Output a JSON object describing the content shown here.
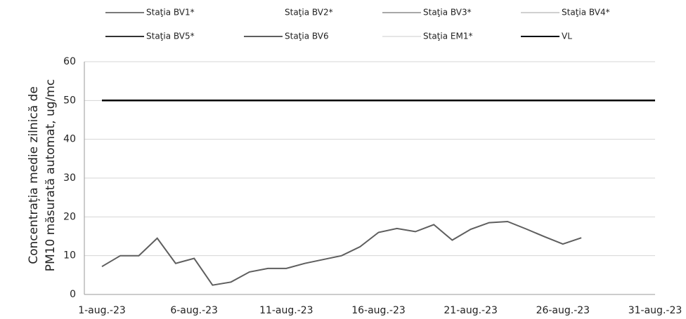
{
  "chart_data": {
    "type": "line",
    "y_label": [
      "Concentrația medie zilnică de",
      "PM10 măsurată automat, ug/mc"
    ],
    "categories": [
      "1-aug.-23",
      null,
      null,
      null,
      null,
      "6-aug.-23",
      null,
      null,
      null,
      null,
      "11-aug.-23",
      null,
      null,
      null,
      null,
      "16-aug.-23",
      null,
      null,
      null,
      null,
      "21-aug.-23",
      null,
      null,
      null,
      null,
      "26-aug.-23",
      null,
      null,
      null,
      null,
      "31-aug.-23"
    ],
    "series": [
      {
        "name": "Staţia BV1*",
        "color": "#7a7a7a",
        "values": [
          null,
          null,
          null,
          null,
          null,
          null,
          null,
          null,
          null,
          null,
          null,
          null,
          null,
          null,
          null,
          null,
          null,
          null,
          null,
          null,
          null,
          null,
          null,
          null,
          null,
          null,
          null,
          null,
          null,
          null,
          null
        ]
      },
      {
        "name": "Staţia BV2*",
        "color": "#ffffff",
        "values": [
          null,
          null,
          null,
          null,
          null,
          null,
          null,
          null,
          null,
          null,
          null,
          null,
          null,
          null,
          null,
          null,
          null,
          null,
          null,
          null,
          null,
          null,
          null,
          null,
          null,
          null,
          null,
          null,
          null,
          null,
          null
        ]
      },
      {
        "name": "Staţia BV3*",
        "color": "#a8a8a8",
        "values": [
          null,
          null,
          null,
          null,
          null,
          null,
          null,
          null,
          null,
          null,
          null,
          null,
          null,
          null,
          null,
          null,
          null,
          null,
          null,
          null,
          null,
          null,
          null,
          null,
          null,
          null,
          null,
          null,
          null,
          null,
          null
        ]
      },
      {
        "name": "Staţia BV4*",
        "color": "#d0d0d0",
        "values": [
          null,
          null,
          null,
          null,
          null,
          null,
          null,
          null,
          null,
          null,
          null,
          null,
          null,
          null,
          null,
          null,
          null,
          null,
          null,
          null,
          null,
          null,
          null,
          null,
          null,
          null,
          null,
          null,
          null,
          null,
          null
        ]
      },
      {
        "name": "Staţia BV5*",
        "color": "#333333",
        "values": [
          null,
          null,
          null,
          null,
          null,
          null,
          null,
          null,
          null,
          null,
          null,
          null,
          null,
          null,
          null,
          null,
          null,
          null,
          null,
          null,
          null,
          null,
          null,
          null,
          null,
          null,
          null,
          null,
          null,
          null,
          null
        ]
      },
      {
        "name": "Staţia BV6",
        "color": "#5e5e5e",
        "values": [
          7.2,
          10,
          10,
          14.5,
          8,
          9.3,
          2.4,
          3.2,
          5.8,
          6.7,
          6.7,
          8,
          9,
          10,
          12.3,
          16,
          17,
          16.2,
          18,
          14,
          16.8,
          18.5,
          18.8,
          16.9,
          14.9,
          13,
          14.6,
          null,
          null,
          null,
          null
        ]
      },
      {
        "name": "Staţia EM1*",
        "color": "#e6e6e6",
        "values": [
          null,
          null,
          null,
          null,
          null,
          null,
          null,
          null,
          null,
          null,
          null,
          null,
          null,
          null,
          null,
          null,
          null,
          null,
          null,
          null,
          null,
          null,
          null,
          null,
          null,
          null,
          null,
          null,
          null,
          null,
          null
        ]
      },
      {
        "name": "VL",
        "color": "#000000",
        "values": [
          50,
          50,
          50,
          50,
          50,
          50,
          50,
          50,
          50,
          50,
          50,
          50,
          50,
          50,
          50,
          50,
          50,
          50,
          50,
          50,
          50,
          50,
          50,
          50,
          50,
          50,
          50,
          50,
          50,
          50,
          50
        ]
      }
    ],
    "ylim": [
      0,
      60
    ],
    "yticks": [
      0,
      10,
      20,
      30,
      40,
      50,
      60
    ],
    "grid": true
  }
}
